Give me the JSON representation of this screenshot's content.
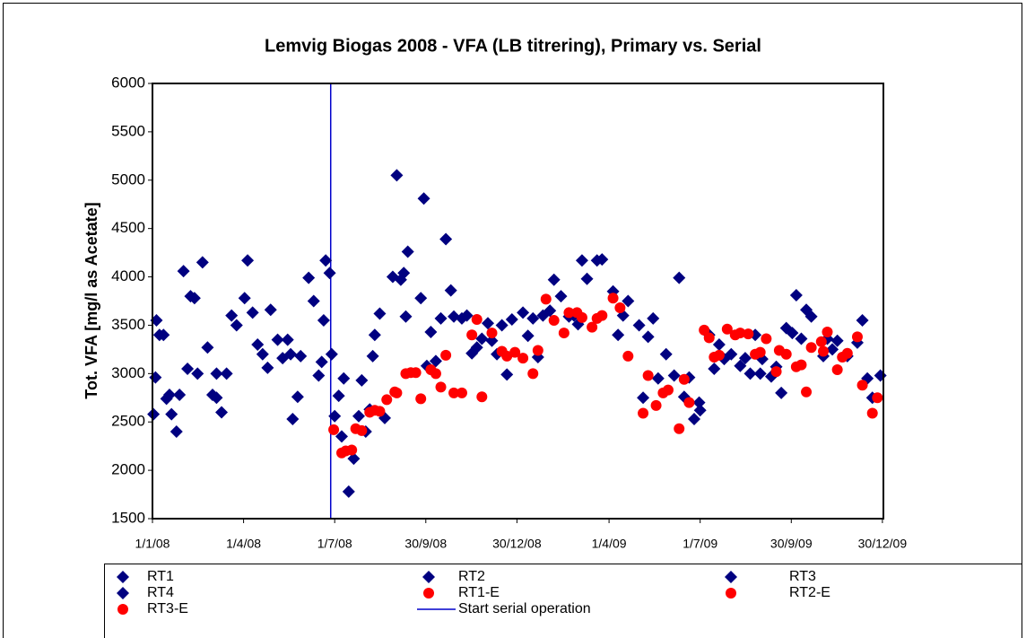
{
  "chart_data": {
    "type": "scatter",
    "title": "Lemvig Biogas 2008 - VFA (LB titrering), Primary vs. Serial",
    "y_label": "Tot. VFA [mg/l as Acetate]",
    "xlim": [
      "2008-01-01",
      "2009-12-31"
    ],
    "xticks": [
      {
        "value": "2008-01-01",
        "label": "1/1/08"
      },
      {
        "value": "2008-04-01",
        "label": "1/4/08"
      },
      {
        "value": "2008-07-01",
        "label": "1/7/08"
      },
      {
        "value": "2008-09-30",
        "label": "30/9/08"
      },
      {
        "value": "2008-12-30",
        "label": "30/12/08"
      },
      {
        "value": "2009-04-01",
        "label": "1/4/09"
      },
      {
        "value": "2009-07-01",
        "label": "1/7/09"
      },
      {
        "value": "2009-09-30",
        "label": "30/9/09"
      },
      {
        "value": "2009-12-30",
        "label": "30/12/09"
      }
    ],
    "ylim": [
      1500,
      6000
    ],
    "yticks": [
      1500,
      2000,
      2500,
      3000,
      3500,
      4000,
      4500,
      5000,
      5500,
      6000
    ],
    "vline": {
      "x": "2008-06-27",
      "label": "Start serial operation",
      "color": "#0000cc"
    },
    "series": [
      {
        "name": "RT1",
        "marker": "diamond",
        "color": "#000080",
        "x": [
          "2008-01-02",
          "2008-01-05",
          "2008-01-12",
          "2008-01-20",
          "2008-01-28",
          "2008-02-05",
          "2008-02-12",
          "2008-02-25",
          "2008-03-05",
          "2008-03-15",
          "2008-03-25",
          "2008-04-02",
          "2008-04-15",
          "2008-04-28",
          "2008-05-10",
          "2008-05-20",
          "2008-05-28",
          "2008-06-05",
          "2008-06-15",
          "2008-06-22",
          "2008-07-01",
          "2008-07-10",
          "2008-07-20",
          "2008-07-28",
          "2008-08-10",
          "2008-08-20",
          "2008-09-01",
          "2008-09-10",
          "2008-09-25",
          "2008-10-05",
          "2008-10-15",
          "2008-10-28",
          "2008-11-10",
          "2008-11-25",
          "2008-12-10",
          "2008-12-25",
          "2009-01-10",
          "2009-01-25",
          "2009-02-05",
          "2009-02-20",
          "2009-03-05",
          "2009-03-20",
          "2009-04-05",
          "2009-04-20",
          "2009-05-05",
          "2009-05-15",
          "2009-05-28",
          "2009-06-10",
          "2009-06-20",
          "2009-07-01",
          "2009-07-10",
          "2009-07-25",
          "2009-08-10",
          "2009-08-25",
          "2009-09-10",
          "2009-09-25",
          "2009-10-05",
          "2009-10-20",
          "2009-11-05",
          "2009-11-25",
          "2009-12-10",
          "2009-12-28"
        ],
        "values": [
          2580,
          3550,
          3400,
          2580,
          2780,
          3050,
          3780,
          3270,
          2750,
          3000,
          3500,
          3780,
          3300,
          3660,
          3160,
          2530,
          3180,
          3990,
          2980,
          4170,
          2560,
          2950,
          2120,
          2930,
          3400,
          2540,
          5050,
          3590,
          3780,
          3430,
          3570,
          3590,
          3600,
          3360,
          3200,
          3560,
          3390,
          3600,
          3970,
          3590,
          4170,
          4170,
          3850,
          3750,
          2750,
          3570,
          3200,
          3990,
          2960,
          2620,
          3400,
          3150,
          3080,
          3400,
          2970,
          3470,
          3810,
          3590,
          3360,
          3180,
          3550,
          2980
        ]
      },
      {
        "name": "RT2",
        "marker": "diamond",
        "color": "#000080",
        "x": [
          "2008-01-04",
          "2008-01-15",
          "2008-01-25",
          "2008-02-08",
          "2008-02-20",
          "2008-03-10",
          "2008-03-20",
          "2008-04-05",
          "2008-04-20",
          "2008-05-05",
          "2008-05-25",
          "2008-06-10",
          "2008-06-20",
          "2008-06-28",
          "2008-07-15",
          "2008-07-25",
          "2008-08-05",
          "2008-08-15",
          "2008-08-28",
          "2008-09-12",
          "2008-09-28",
          "2008-10-20",
          "2008-11-05",
          "2008-12-01",
          "2008-12-20",
          "2009-01-15",
          "2009-02-12",
          "2009-03-10",
          "2009-04-10",
          "2009-05-10",
          "2009-06-05",
          "2009-06-25",
          "2009-07-20",
          "2009-08-15",
          "2009-09-01",
          "2009-09-20",
          "2009-10-15",
          "2009-11-15",
          "2009-12-20"
        ],
        "values": [
          2960,
          2740,
          2400,
          3800,
          4150,
          2600,
          3600,
          4170,
          3200,
          3350,
          2760,
          3750,
          3550,
          3200,
          1780,
          2560,
          2630,
          3620,
          4000,
          4260,
          4810,
          4390,
          3570,
          3520,
          2990,
          3570,
          3800,
          3980,
          3400,
          3380,
          2980,
          2530,
          3300,
          3160,
          3150,
          2800,
          3660,
          3340,
          2750
        ]
      },
      {
        "name": "RT3",
        "marker": "diamond",
        "color": "#000080",
        "x": [
          "2008-01-08",
          "2008-02-01",
          "2008-03-01",
          "2008-04-10",
          "2008-05-15",
          "2008-06-26",
          "2008-07-05",
          "2008-08-01",
          "2008-09-05",
          "2008-10-01",
          "2008-10-25",
          "2008-11-20",
          "2008-12-15",
          "2009-01-20",
          "2009-02-25",
          "2009-03-25",
          "2009-05-01",
          "2009-06-15",
          "2009-07-15",
          "2009-08-20",
          "2009-09-15",
          "2009-10-10",
          "2009-11-10",
          "2009-12-05"
        ],
        "values": [
          3400,
          4060,
          2780,
          3630,
          3350,
          4040,
          2770,
          2400,
          3970,
          3080,
          3860,
          3270,
          3500,
          3170,
          3600,
          4180,
          3500,
          2760,
          3050,
          3000,
          3070,
          3360,
          3250,
          3320
        ]
      },
      {
        "name": "RT4",
        "marker": "diamond",
        "color": "#000080",
        "x": [
          "2008-01-18",
          "2008-02-15",
          "2008-03-05",
          "2008-04-25",
          "2008-05-18",
          "2008-06-18",
          "2008-07-08",
          "2008-08-08",
          "2008-09-08",
          "2008-10-10",
          "2008-11-15",
          "2008-12-05",
          "2009-01-05",
          "2009-02-01",
          "2009-03-01",
          "2009-04-15",
          "2009-05-20",
          "2009-06-30",
          "2009-08-01",
          "2009-08-30",
          "2009-10-01",
          "2009-11-01",
          "2009-12-15"
        ],
        "values": [
          2780,
          3000,
          3000,
          3060,
          3200,
          3120,
          2350,
          3180,
          4040,
          3130,
          3210,
          3340,
          3630,
          3650,
          3510,
          3600,
          2950,
          2700,
          3200,
          3000,
          3420,
          3180,
          2950
        ]
      },
      {
        "name": "RT1-E",
        "marker": "circle",
        "color": "#ff0000",
        "x": [
          "2008-06-30",
          "2008-07-12",
          "2008-07-22",
          "2008-08-05",
          "2008-08-22",
          "2008-09-10",
          "2008-09-25",
          "2008-10-10",
          "2008-10-28",
          "2008-11-20",
          "2008-12-15",
          "2009-01-05",
          "2009-01-28",
          "2009-02-15",
          "2009-03-05",
          "2009-03-25",
          "2009-04-20",
          "2009-05-10",
          "2009-05-25",
          "2009-06-10",
          "2009-07-05",
          "2009-07-20",
          "2009-08-10",
          "2009-08-25",
          "2009-09-15",
          "2009-10-05",
          "2009-10-20",
          "2009-11-05",
          "2009-11-20",
          "2009-12-10"
        ],
        "values": [
          2420,
          2200,
          2430,
          2600,
          2730,
          3000,
          2740,
          3000,
          2800,
          3560,
          3230,
          3160,
          3770,
          3420,
          3580,
          3600,
          3180,
          2980,
          2800,
          2430,
          3450,
          3190,
          3420,
          3200,
          3020,
          3070,
          3270,
          3430,
          3170,
          2880
        ]
      },
      {
        "name": "RT2-E",
        "marker": "circle",
        "color": "#ff0000",
        "x": [
          "2008-07-08",
          "2008-07-28",
          "2008-08-15",
          "2008-09-01",
          "2008-09-20",
          "2008-10-15",
          "2008-11-05",
          "2008-11-25",
          "2008-12-20",
          "2009-01-15",
          "2009-02-05",
          "2009-02-28",
          "2009-03-20",
          "2009-04-05",
          "2009-05-05",
          "2009-05-30",
          "2009-06-15",
          "2009-07-10",
          "2009-07-28",
          "2009-08-18",
          "2009-09-05",
          "2009-09-25",
          "2009-10-15",
          "2009-11-01",
          "2009-11-25",
          "2009-12-20"
        ],
        "values": [
          2180,
          2410,
          2610,
          2800,
          3010,
          2860,
          2800,
          2760,
          3180,
          3000,
          3550,
          3630,
          3570,
          3780,
          2590,
          2830,
          2940,
          3370,
          3460,
          3410,
          3360,
          3200,
          2810,
          3230,
          3210,
          2590
        ]
      },
      {
        "name": "RT3-E",
        "marker": "circle",
        "color": "#ff0000",
        "x": [
          "2008-07-18",
          "2008-08-10",
          "2008-08-30",
          "2008-09-15",
          "2008-10-05",
          "2008-10-20",
          "2008-11-15",
          "2008-12-05",
          "2008-12-28",
          "2009-01-20",
          "2009-02-20",
          "2009-03-15",
          "2009-04-12",
          "2009-05-18",
          "2009-06-20",
          "2009-07-15",
          "2009-08-05",
          "2009-08-30",
          "2009-09-18",
          "2009-10-10",
          "2009-10-30",
          "2009-11-15",
          "2009-12-05",
          "2009-12-25"
        ],
        "values": [
          2210,
          2620,
          2810,
          3010,
          3040,
          3190,
          3400,
          3420,
          3220,
          3240,
          3630,
          3480,
          3680,
          2670,
          2700,
          3170,
          3400,
          3220,
          3240,
          3090,
          3330,
          3040,
          3380,
          2750
        ]
      }
    ]
  }
}
